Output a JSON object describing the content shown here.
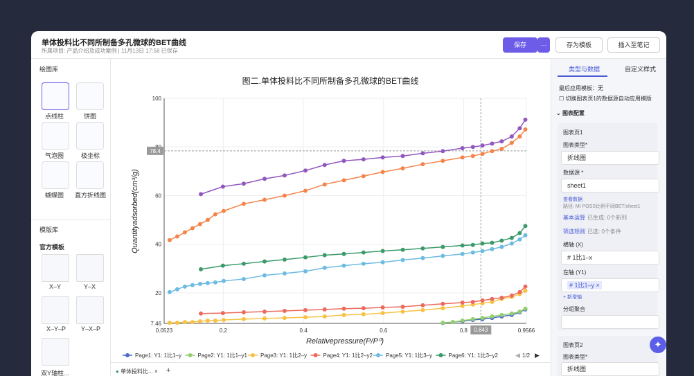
{
  "header": {
    "title": "单体投料比不同所制备多孔微球的BET曲线",
    "subtitle": "所属项目: 产品介绍及成功案例 | 11月13日 17:58 已保存",
    "buttons": [
      "保存",
      "存为模板",
      "插入至笔记"
    ]
  },
  "sidebar": {
    "gallery_title": "绘图库",
    "charts": [
      "点线柱",
      "饼图",
      "气泡图",
      "极坐标",
      "蝴蝶图",
      "直方折线图"
    ],
    "template_title": "模版库",
    "official": "官方模板",
    "templates": [
      "X–Y",
      "Y–X",
      "X–Y–P",
      "Y–X–P",
      "双Y轴柱..."
    ]
  },
  "panel": {
    "tabs": [
      "类型与数据",
      "自定义样式"
    ],
    "last_template": "最后应用模板：无",
    "auto_apply": "切换图表页1的数据源自动应用模版",
    "section": "图表配置",
    "page1": "图表页1",
    "chart_type_label": "图表类型*",
    "chart_type": "折线图",
    "source_label": "数据源 *",
    "source": "sheet1",
    "view_data": "查看数据",
    "path": "路径: MI POSS比例不同BET/sheet1",
    "basic": "基本运算",
    "basic_info": "已生成: 0个新列",
    "filter": "筛选规则",
    "filter_info": "已选: 0个条件",
    "x_label": "横轴 (X)",
    "x_field": "# 1比1–x",
    "y_label": "左轴 (Y1)",
    "y_field": "# 1比1–y ×",
    "add_axis": "+ 新增轴",
    "group": "分组聚合",
    "page2": "图表页2",
    "chart_type_label2": "图表类型*",
    "chart_type2": "折线图"
  },
  "tab": {
    "label": "单体投料比..."
  },
  "chart_data": {
    "type": "line",
    "title": "图二.单体投料比不同所制备多孔微球的BET曲线",
    "x_label": "Relativepressure(P/P⁰)",
    "y_label": "Quantityadsorbed(cm³/g)",
    "xlim": [
      0.0523,
      0.9566
    ],
    "xticks": [
      0.0523,
      0.2,
      0.4,
      0.6,
      0.8,
      0.9566
    ],
    "ylim": [
      7.46,
      100
    ],
    "yticks": [
      7.46,
      20,
      40,
      60,
      80,
      100
    ],
    "grid": true,
    "crosshair": {
      "x": 0.843,
      "y": 78.4
    },
    "legend_page": "1/2",
    "series": [
      {
        "name": "Page1: Y1: 1比1–y",
        "color": "#4e6bc6",
        "x": [
          0.748,
          0.773,
          0.797,
          0.823,
          0.847,
          0.871,
          0.895,
          0.92,
          0.94,
          0.954
        ],
        "values": [
          7.6,
          8.0,
          8.3,
          8.9,
          9.2,
          9.7,
          10.3,
          10.9,
          12.0,
          13.2
        ]
      },
      {
        "name": "Page2: Y1: 1比1–y1",
        "color": "#92d06f",
        "x": [
          0.748,
          0.773,
          0.797,
          0.823,
          0.847,
          0.871,
          0.895,
          0.92,
          0.94,
          0.954
        ],
        "values": [
          7.7,
          8.0,
          8.6,
          9.2,
          9.7,
          10.3,
          10.9,
          11.5,
          12.3,
          13.5
        ]
      },
      {
        "name": "Page3: Y1: 1比2–y",
        "color": "#f7c244",
        "x": [
          0.066,
          0.085,
          0.104,
          0.123,
          0.142,
          0.161,
          0.18,
          0.201,
          0.251,
          0.303,
          0.353,
          0.405,
          0.453,
          0.501,
          0.55,
          0.598,
          0.648,
          0.698,
          0.748,
          0.797,
          0.823,
          0.847,
          0.871,
          0.895,
          0.92,
          0.94,
          0.954
        ],
        "values": [
          7.7,
          7.7,
          8.0,
          8.0,
          8.3,
          8.6,
          8.6,
          8.9,
          9.2,
          9.5,
          9.7,
          10.0,
          10.3,
          10.9,
          11.2,
          11.7,
          12.3,
          12.9,
          13.7,
          14.6,
          15.2,
          15.7,
          16.3,
          17.5,
          18.3,
          19.5,
          20.9
        ]
      },
      {
        "name": "Page4: Y1: 1比2–y2",
        "color": "#ec6a5c",
        "x": [
          0.144,
          0.199,
          0.251,
          0.303,
          0.353,
          0.405,
          0.453,
          0.501,
          0.55,
          0.598,
          0.648,
          0.698,
          0.748,
          0.797,
          0.823,
          0.847,
          0.871,
          0.895,
          0.92,
          0.94,
          0.954
        ],
        "values": [
          11.5,
          11.7,
          12.0,
          12.3,
          12.6,
          12.9,
          13.2,
          13.5,
          13.7,
          14.0,
          14.3,
          14.9,
          15.5,
          16.0,
          16.3,
          16.9,
          17.5,
          18.0,
          18.9,
          20.3,
          22.6
        ]
      },
      {
        "name": "Page5: Y1: 1比3–y",
        "color": "#6cbbe0",
        "x": [
          0.066,
          0.085,
          0.104,
          0.123,
          0.142,
          0.161,
          0.18,
          0.201,
          0.251,
          0.303,
          0.353,
          0.405,
          0.453,
          0.501,
          0.55,
          0.598,
          0.648,
          0.698,
          0.748,
          0.797,
          0.823,
          0.847,
          0.871,
          0.895,
          0.92,
          0.94,
          0.954
        ],
        "values": [
          20.3,
          21.5,
          22.6,
          23.2,
          23.7,
          24.0,
          24.3,
          24.9,
          25.7,
          27.2,
          28.0,
          28.9,
          30.3,
          31.2,
          32.0,
          32.6,
          33.5,
          34.3,
          35.2,
          36.0,
          36.6,
          37.2,
          38.0,
          38.9,
          40.3,
          42.0,
          43.7
        ]
      },
      {
        "name": "Page6: Y1: 1比3–y2",
        "color": "#3a9a6a",
        "x": [
          0.144,
          0.199,
          0.251,
          0.303,
          0.353,
          0.405,
          0.453,
          0.501,
          0.55,
          0.598,
          0.648,
          0.698,
          0.748,
          0.797,
          0.823,
          0.847,
          0.871,
          0.895,
          0.92,
          0.94,
          0.954
        ],
        "values": [
          29.7,
          31.2,
          32.0,
          32.9,
          33.7,
          34.6,
          35.5,
          36.0,
          36.6,
          37.2,
          37.7,
          38.3,
          38.9,
          39.5,
          39.7,
          40.3,
          40.6,
          41.5,
          42.6,
          44.6,
          47.5
        ]
      },
      {
        "color": "#f5844a",
        "x": [
          0.066,
          0.085,
          0.104,
          0.123,
          0.142,
          0.161,
          0.18,
          0.201,
          0.251,
          0.303,
          0.353,
          0.405,
          0.453,
          0.501,
          0.55,
          0.598,
          0.648,
          0.698,
          0.748,
          0.797,
          0.823,
          0.847,
          0.871,
          0.895,
          0.92,
          0.94,
          0.954
        ],
        "values": [
          41.7,
          43.2,
          44.9,
          46.6,
          48.3,
          50.0,
          52.3,
          53.7,
          56.6,
          58.3,
          60.0,
          62.0,
          64.6,
          66.3,
          68.0,
          69.7,
          71.2,
          72.9,
          74.3,
          75.7,
          76.3,
          77.2,
          78.3,
          79.2,
          81.7,
          84.3,
          87.2
        ]
      },
      {
        "color": "#9157bf",
        "x": [
          0.144,
          0.199,
          0.251,
          0.303,
          0.353,
          0.405,
          0.453,
          0.501,
          0.55,
          0.598,
          0.648,
          0.698,
          0.748,
          0.797,
          0.823,
          0.847,
          0.871,
          0.895,
          0.92,
          0.94,
          0.954
        ],
        "values": [
          60.6,
          63.7,
          64.9,
          66.9,
          68.3,
          70.3,
          72.6,
          74.3,
          74.9,
          75.7,
          76.3,
          77.4,
          78.3,
          79.5,
          80.0,
          80.6,
          81.4,
          82.3,
          84.3,
          87.7,
          91.2
        ]
      }
    ]
  }
}
